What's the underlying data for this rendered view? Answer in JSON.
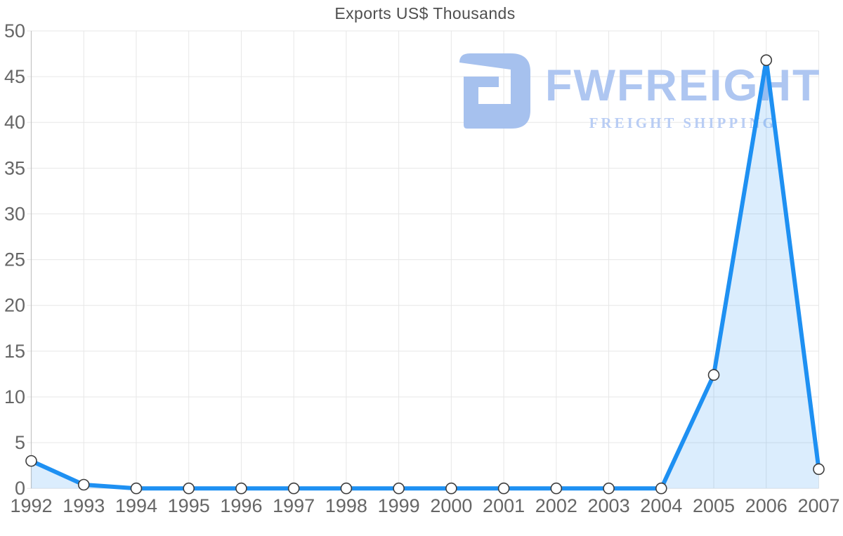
{
  "chart_data": {
    "type": "area",
    "title": "Exports US$ Thousands",
    "categories": [
      "1992",
      "1993",
      "1994",
      "1995",
      "1996",
      "1997",
      "1998",
      "1999",
      "2000",
      "2001",
      "2002",
      "2003",
      "2004",
      "2005",
      "2006",
      "2007"
    ],
    "series": [
      {
        "name": "Exports US$ Thousands",
        "values": [
          3,
          0.4,
          0,
          0,
          0,
          0,
          0,
          0,
          0,
          0,
          0,
          0,
          0,
          12.4,
          46.8,
          2.1
        ]
      }
    ],
    "xlabel": "",
    "ylabel": "",
    "ylim": [
      0,
      50
    ],
    "ytick_step": 5,
    "yticks": [
      "0",
      "5",
      "10",
      "15",
      "20",
      "25",
      "30",
      "35",
      "40",
      "45",
      "50"
    ],
    "grid": "on",
    "legend_position": "none",
    "colors": {
      "line": "#1e90f2",
      "area_fill": "rgba(30,144,242,0.16)",
      "marker_fill": "#ffffff",
      "marker_stroke": "#3d3d3d",
      "grid": "#e7e7e7",
      "axis_line": "#c4c4c4",
      "tick_label": "#666666",
      "title": "#4f4f4f"
    }
  },
  "watermark": {
    "brand": "FWFREIGHT",
    "tagline": "FREIGHT SHIPPING",
    "icon": "fwfreight-logo-icon",
    "icon_color": "#a6c1ee",
    "brand_color": "#aec6f1",
    "tagline_color": "#b9cdf4"
  }
}
